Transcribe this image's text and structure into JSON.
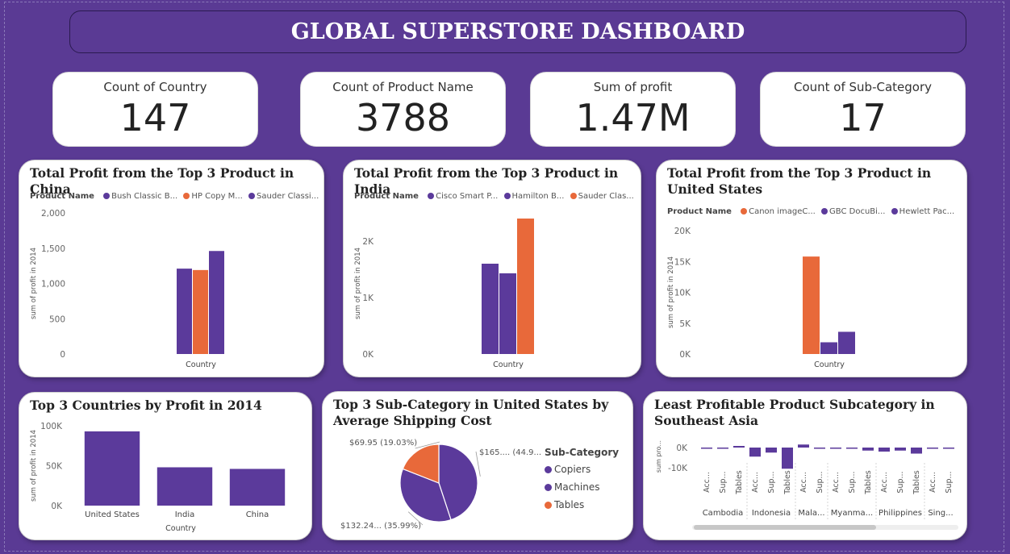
{
  "dashboard": {
    "title": "GLOBAL SUPERSTORE DASHBOARD"
  },
  "colors": {
    "purple": "#5b3a9b",
    "orange": "#e8693a",
    "background": "#5a3a94"
  },
  "kpis": [
    {
      "label": "Count of Country",
      "value": "147"
    },
    {
      "label": "Count of Product Name",
      "value": "3788"
    },
    {
      "label": "Sum of profit",
      "value": "1.47M"
    },
    {
      "label": "Count of Sub-Category",
      "value": "17"
    }
  ],
  "chart_data": [
    {
      "id": "china",
      "type": "bar",
      "title": "Total Profit from the Top 3 Product in China",
      "legend_title": "Product Name",
      "legend": [
        {
          "label": "Bush Classic B...",
          "color": "#5b3a9b"
        },
        {
          "label": "HP Copy M...",
          "color": "#e8693a"
        },
        {
          "label": "Sauder Classi...",
          "color": "#5b3a9b"
        }
      ],
      "xlabel": "Country",
      "ylabel": "sum of profit in 2014",
      "ylim": [
        0,
        2000
      ],
      "yticks": [
        {
          "v": 0,
          "label": "0"
        },
        {
          "v": 500,
          "label": "500"
        },
        {
          "v": 1000,
          "label": "1,000"
        },
        {
          "v": 1500,
          "label": "1,500"
        },
        {
          "v": 2000,
          "label": "2,000"
        }
      ],
      "series": [
        {
          "name": "Bush Classic B...",
          "color": "#5b3a9b",
          "value": 1210
        },
        {
          "name": "HP Copy M...",
          "color": "#e8693a",
          "value": 1190
        },
        {
          "name": "Sauder Classi...",
          "color": "#5b3a9b",
          "value": 1460
        }
      ]
    },
    {
      "id": "india",
      "type": "bar",
      "title": "Total Profit from the Top 3 Product in India",
      "legend_title": "Product Name",
      "legend": [
        {
          "label": "Cisco Smart P...",
          "color": "#5b3a9b"
        },
        {
          "label": "Hamilton B...",
          "color": "#5b3a9b"
        },
        {
          "label": "Sauder Clas...",
          "color": "#e8693a"
        }
      ],
      "xlabel": "Country",
      "ylabel": "sum of profit in 2014",
      "ylim": [
        0,
        2500
      ],
      "yticks": [
        {
          "v": 0,
          "label": "0K"
        },
        {
          "v": 1000,
          "label": "1K"
        },
        {
          "v": 2000,
          "label": "2K"
        }
      ],
      "series": [
        {
          "name": "Cisco Smart P...",
          "color": "#5b3a9b",
          "value": 1600
        },
        {
          "name": "Hamilton B...",
          "color": "#5b3a9b",
          "value": 1430
        },
        {
          "name": "Sauder Clas...",
          "color": "#e8693a",
          "value": 2400
        }
      ]
    },
    {
      "id": "us",
      "type": "bar",
      "title": "Total Profit from the Top 3 Product in United States",
      "legend_title": "Product Name",
      "legend": [
        {
          "label": "Canon imageC...",
          "color": "#e8693a"
        },
        {
          "label": "GBC DocuBi...",
          "color": "#5b3a9b"
        },
        {
          "label": "Hewlett Pac...",
          "color": "#5b3a9b"
        }
      ],
      "xlabel": "Country",
      "ylabel": "sum of profit in 2014",
      "ylim": [
        0,
        20000
      ],
      "yticks": [
        {
          "v": 0,
          "label": "0K"
        },
        {
          "v": 5000,
          "label": "5K"
        },
        {
          "v": 10000,
          "label": "10K"
        },
        {
          "v": 15000,
          "label": "15K"
        },
        {
          "v": 20000,
          "label": "20K"
        }
      ],
      "series": [
        {
          "name": "Canon imageC...",
          "color": "#e8693a",
          "value": 15800
        },
        {
          "name": "GBC DocuBi...",
          "color": "#5b3a9b",
          "value": 1900
        },
        {
          "name": "Hewlett Pac...",
          "color": "#5b3a9b",
          "value": 3600
        }
      ]
    },
    {
      "id": "top_countries",
      "type": "bar",
      "title": "Top 3 Countries by Profit in 2014",
      "xlabel": "Country",
      "ylabel": "sum of profit in 2014",
      "ylim": [
        0,
        100000
      ],
      "yticks": [
        {
          "v": 0,
          "label": "0K"
        },
        {
          "v": 50000,
          "label": "50K"
        },
        {
          "v": 100000,
          "label": "100K"
        }
      ],
      "categories": [
        "United States",
        "India",
        "China"
      ],
      "values": [
        93000,
        48000,
        46000
      ],
      "color": "#5b3a9b"
    },
    {
      "id": "pie_us",
      "type": "pie",
      "title": "Top 3 Sub-Category in United States by Average Shipping Cost",
      "legend_title": "Sub-Category",
      "slices": [
        {
          "label": "Copiers",
          "value": 165.0,
          "color": "#5b3a9b",
          "data_label": "$165.... (44.9...",
          "pct": 44.98
        },
        {
          "label": "Machines",
          "value": 132.24,
          "color": "#5b3a9b",
          "data_label": "$132.24... (35.99%)",
          "pct": 35.99
        },
        {
          "label": "Tables",
          "value": 69.95,
          "color": "#e8693a",
          "data_label": "$69.95 (19.03%)",
          "pct": 19.03
        }
      ]
    },
    {
      "id": "southeast_asia",
      "type": "bar",
      "title": "Least Profitable Product Subcategory in Southeast Asia",
      "ylabel": "sum pro...",
      "ylim": [
        -15000,
        3000
      ],
      "yticks": [
        {
          "v": 0,
          "label": "0K"
        },
        {
          "v": -10000,
          "label": "-10K"
        }
      ],
      "groups": [
        {
          "name": "Cambodia",
          "bars": [
            {
              "label": "Acc...",
              "value": -200
            },
            {
              "label": "Sup...",
              "value": -100
            },
            {
              "label": "Tables",
              "value": 800
            }
          ]
        },
        {
          "name": "Indonesia",
          "bars": [
            {
              "label": "Acc...",
              "value": -4500
            },
            {
              "label": "Sup...",
              "value": -2500
            },
            {
              "label": "Tables",
              "value": -10500
            }
          ]
        },
        {
          "name": "Mala...",
          "bars": [
            {
              "label": "Acc...",
              "value": 1500
            },
            {
              "label": "Sup...",
              "value": -300
            }
          ]
        },
        {
          "name": "Myanma...",
          "bars": [
            {
              "label": "Acc...",
              "value": -500
            },
            {
              "label": "Sup...",
              "value": -200
            },
            {
              "label": "Tables",
              "value": -1500
            }
          ]
        },
        {
          "name": "Philippines",
          "bars": [
            {
              "label": "Acc...",
              "value": -2000
            },
            {
              "label": "Sup...",
              "value": -1500
            },
            {
              "label": "Tables",
              "value": -3000
            }
          ]
        },
        {
          "name": "Sing...",
          "bars": [
            {
              "label": "Acc...",
              "value": -300
            },
            {
              "label": "Sup...",
              "value": -200
            }
          ]
        }
      ],
      "color": "#5b3a9b"
    }
  ]
}
